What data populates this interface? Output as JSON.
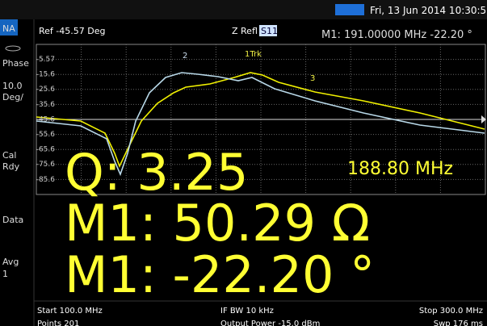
{
  "status": {
    "date": "Fri, 13 Jun 2014 10:30:58 AM"
  },
  "sidebar": {
    "mode": "NA",
    "format": "Phase",
    "scale": "10.0",
    "scale_unit": "Deg/",
    "cal": "Cal",
    "cal_state": "Rdy",
    "data": "Data",
    "avg": "Avg",
    "avg_count": "1"
  },
  "header": {
    "ref": "Ref -45.57 Deg",
    "meas": "Z Refl",
    "param": "S11",
    "marker": "M1:  191.00000 MHz  -22.20 °"
  },
  "y_ticks": [
    "-5.57",
    "-15.6",
    "-25.6",
    "-35.6",
    "-45.6",
    "-55.6",
    "-65.6",
    "-75.6",
    "-85.6"
  ],
  "markers": [
    "2",
    "1Trk",
    "3"
  ],
  "readouts": {
    "q": "Q: 3.25",
    "freq": "188.80 MHz",
    "impedance": "M1: 50.29 Ω",
    "phase": "M1: -22.20 °"
  },
  "footer": {
    "start": "Start 100.0 MHz",
    "ifbw": "IF BW 10 kHz",
    "stop": "Stop 300.0 MHz",
    "points": "Points 201",
    "power": "Output Power -15.0 dBm",
    "sweep": "Swp 176 ms"
  }
}
